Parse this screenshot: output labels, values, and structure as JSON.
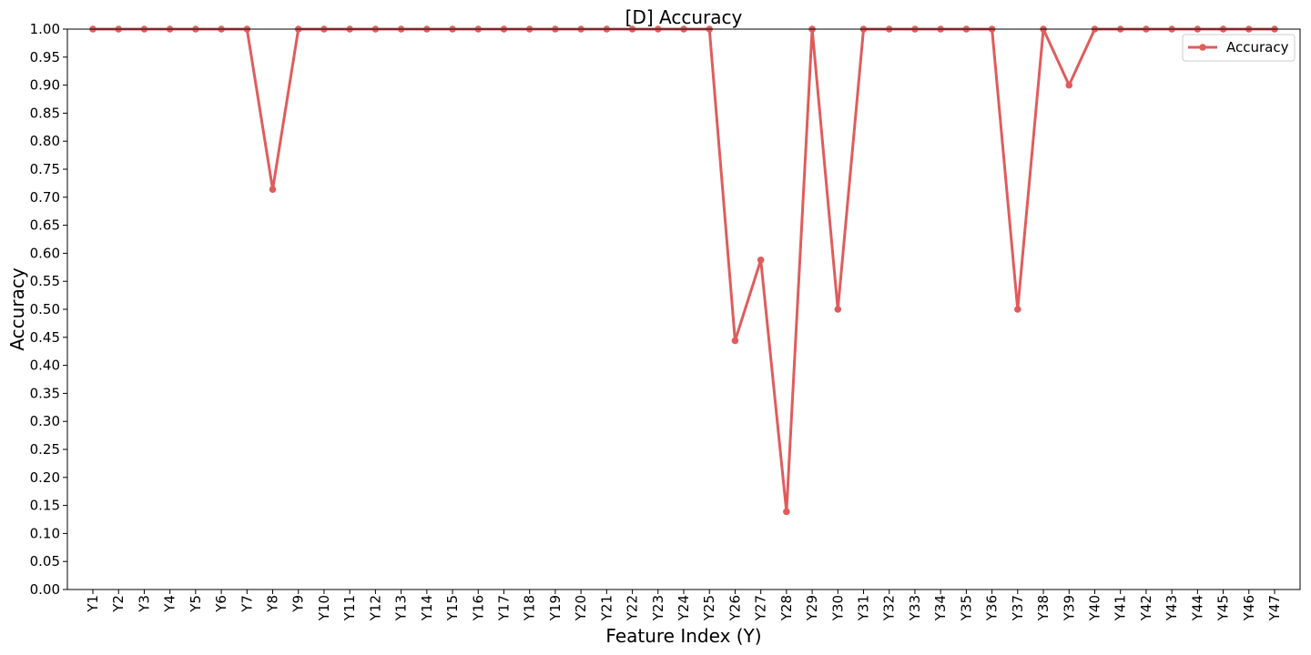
{
  "chart_data": {
    "type": "line",
    "title": "[D] Accuracy",
    "xlabel": "Feature Index (Y)",
    "ylabel": "Accuracy",
    "ylim": [
      0,
      1
    ],
    "yticks": [
      0.0,
      0.05,
      0.1,
      0.15,
      0.2,
      0.25,
      0.3,
      0.35,
      0.4,
      0.45,
      0.5,
      0.55,
      0.6,
      0.65,
      0.7,
      0.75,
      0.8,
      0.85,
      0.9,
      0.95,
      1.0
    ],
    "grid": false,
    "legend_position": "top-right",
    "categories": [
      "Y1",
      "Y2",
      "Y3",
      "Y4",
      "Y5",
      "Y6",
      "Y7",
      "Y8",
      "Y9",
      "Y10",
      "Y11",
      "Y12",
      "Y13",
      "Y14",
      "Y15",
      "Y16",
      "Y17",
      "Y18",
      "Y19",
      "Y20",
      "Y21",
      "Y22",
      "Y23",
      "Y24",
      "Y25",
      "Y26",
      "Y27",
      "Y28",
      "Y29",
      "Y30",
      "Y31",
      "Y32",
      "Y33",
      "Y34",
      "Y35",
      "Y36",
      "Y37",
      "Y38",
      "Y39",
      "Y40",
      "Y41",
      "Y42",
      "Y43",
      "Y44",
      "Y45",
      "Y46",
      "Y47"
    ],
    "series": [
      {
        "name": "Accuracy",
        "color": "#e05c5c",
        "values": [
          1.0,
          1.0,
          1.0,
          1.0,
          1.0,
          1.0,
          1.0,
          0.714,
          1.0,
          1.0,
          1.0,
          1.0,
          1.0,
          1.0,
          1.0,
          1.0,
          1.0,
          1.0,
          1.0,
          1.0,
          1.0,
          1.0,
          1.0,
          1.0,
          1.0,
          0.444,
          0.588,
          0.139,
          1.0,
          0.5,
          1.0,
          1.0,
          1.0,
          1.0,
          1.0,
          1.0,
          0.5,
          1.0,
          0.9,
          1.0,
          1.0,
          1.0,
          1.0,
          1.0,
          1.0,
          1.0,
          1.0
        ]
      }
    ]
  }
}
